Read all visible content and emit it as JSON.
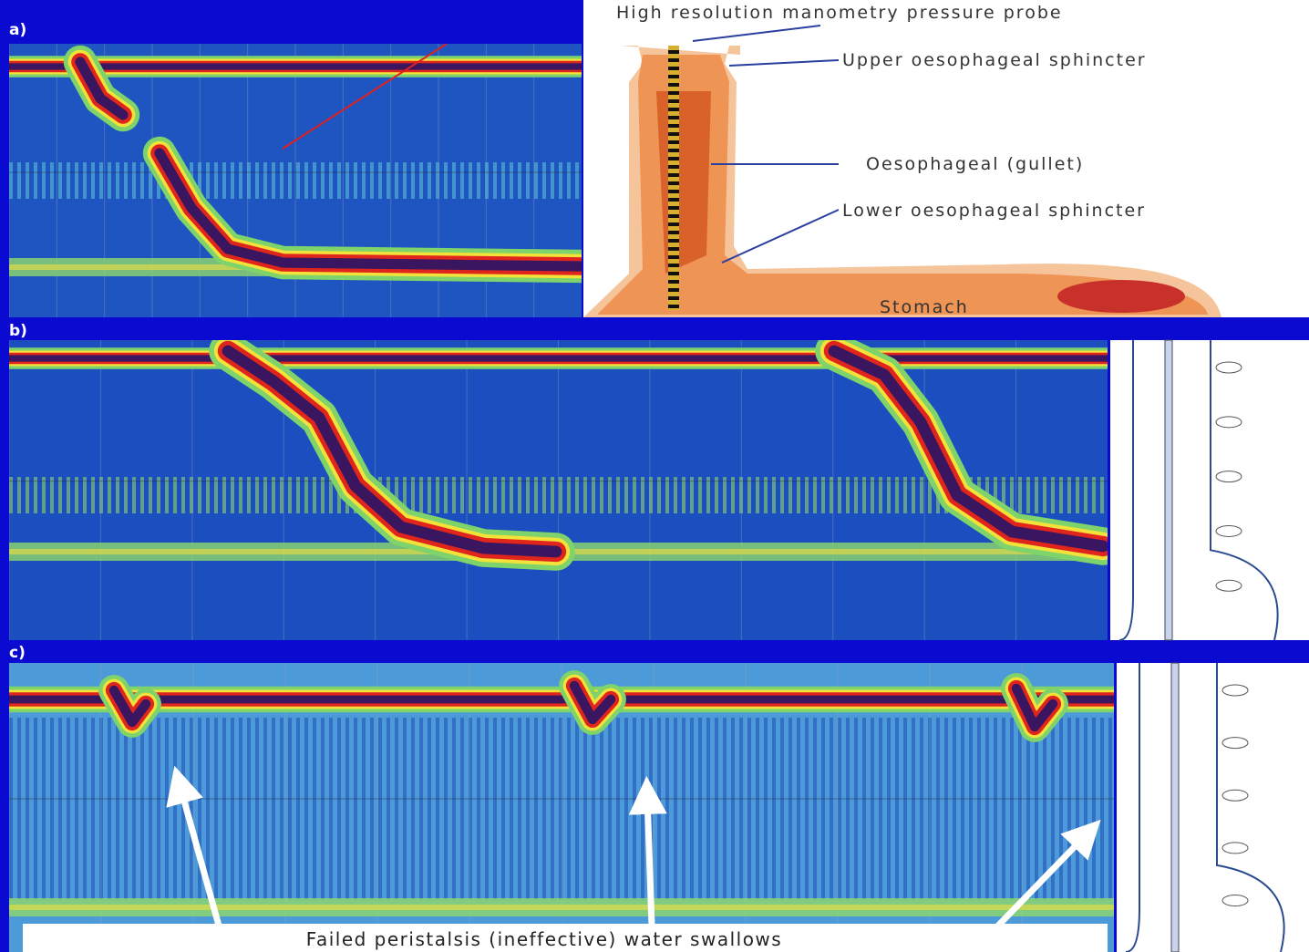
{
  "panels": [
    {
      "label": "a)"
    },
    {
      "label": "b)"
    },
    {
      "label": "c)"
    }
  ],
  "diagram": {
    "probe": "High resolution manometry pressure probe",
    "ues": "Upper oesophageal sphincter",
    "oesophagus": "Oesophageal (gullet)",
    "les": "Lower oesophageal sphincter",
    "stomach": "Stomach"
  },
  "caption": "Failed peristalsis (ineffective) water swallows"
}
